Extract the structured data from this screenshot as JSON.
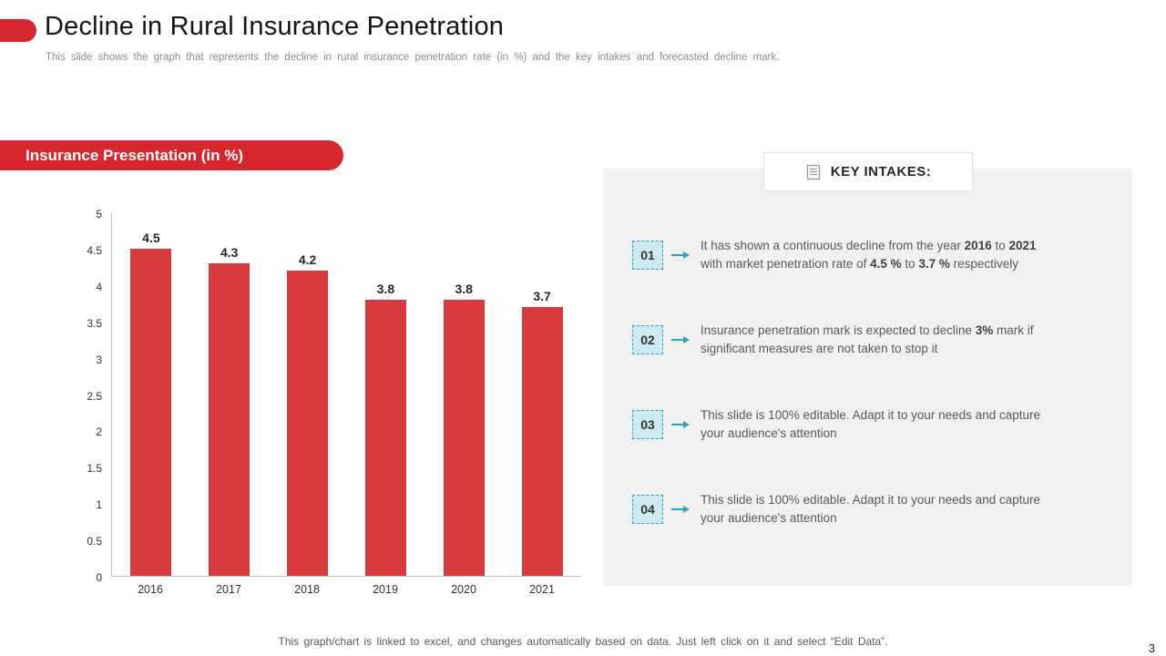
{
  "header": {
    "title": "Decline in Rural Insurance Penetration",
    "subtitle": "This slide shows the graph that represents the decline in rural insurance penetration rate (in %) and the key intakes and forecasted decline mark."
  },
  "chart_section": {
    "ribbon_label": "Insurance Presentation (in %)"
  },
  "chart_data": {
    "type": "bar",
    "title": "Insurance Presentation (in %)",
    "categories": [
      "2016",
      "2017",
      "2018",
      "2019",
      "2020",
      "2021"
    ],
    "values": [
      4.5,
      4.3,
      4.2,
      3.8,
      3.8,
      3.7
    ],
    "data_labels": [
      "4.5",
      "4.3",
      "4.2",
      "3.8",
      "3.8",
      "3.7"
    ],
    "xlabel": "",
    "ylabel": "",
    "ylim": [
      0,
      5
    ],
    "yticks": [
      0,
      0.5,
      1,
      1.5,
      2,
      2.5,
      3,
      3.5,
      4,
      4.5,
      5
    ],
    "grid": false,
    "legend": "none",
    "bar_color": "#d93a3e"
  },
  "key_intakes": {
    "header": "KEY INTAKES:",
    "icon": "document-icon",
    "items": [
      {
        "number": "01",
        "parts": [
          {
            "t": "It has shown a continuous decline from the year "
          },
          {
            "t": "2016",
            "b": true
          },
          {
            "t": " to "
          },
          {
            "t": "2021",
            "b": true
          },
          {
            "t": " with market penetration rate of "
          },
          {
            "t": "4.5 %",
            "b": true
          },
          {
            "t": " to "
          },
          {
            "t": "3.7 %",
            "b": true
          },
          {
            "t": " respectively"
          }
        ]
      },
      {
        "number": "02",
        "parts": [
          {
            "t": "Insurance penetration mark is expected to decline "
          },
          {
            "t": "3%",
            "b": true
          },
          {
            "t": " mark if significant measures are not taken to stop it"
          }
        ]
      },
      {
        "number": "03",
        "parts": [
          {
            "t": "This slide is 100% editable. Adapt it to your needs and capture your audience's attention"
          }
        ]
      },
      {
        "number": "04",
        "parts": [
          {
            "t": "This slide is 100% editable. Adapt it to your needs and capture your audience's attention"
          }
        ]
      }
    ]
  },
  "footer": {
    "note": "This graph/chart is linked to excel, and changes automatically based on data. Just left click on it and select “Edit Data”.",
    "page_number": "3"
  },
  "colors": {
    "accent_red": "#d7262d",
    "bar_red": "#d93a3e",
    "teal": "#2aa3bd",
    "badge_bg": "#cdeaf3",
    "panel_bg": "#f1f1f1"
  }
}
